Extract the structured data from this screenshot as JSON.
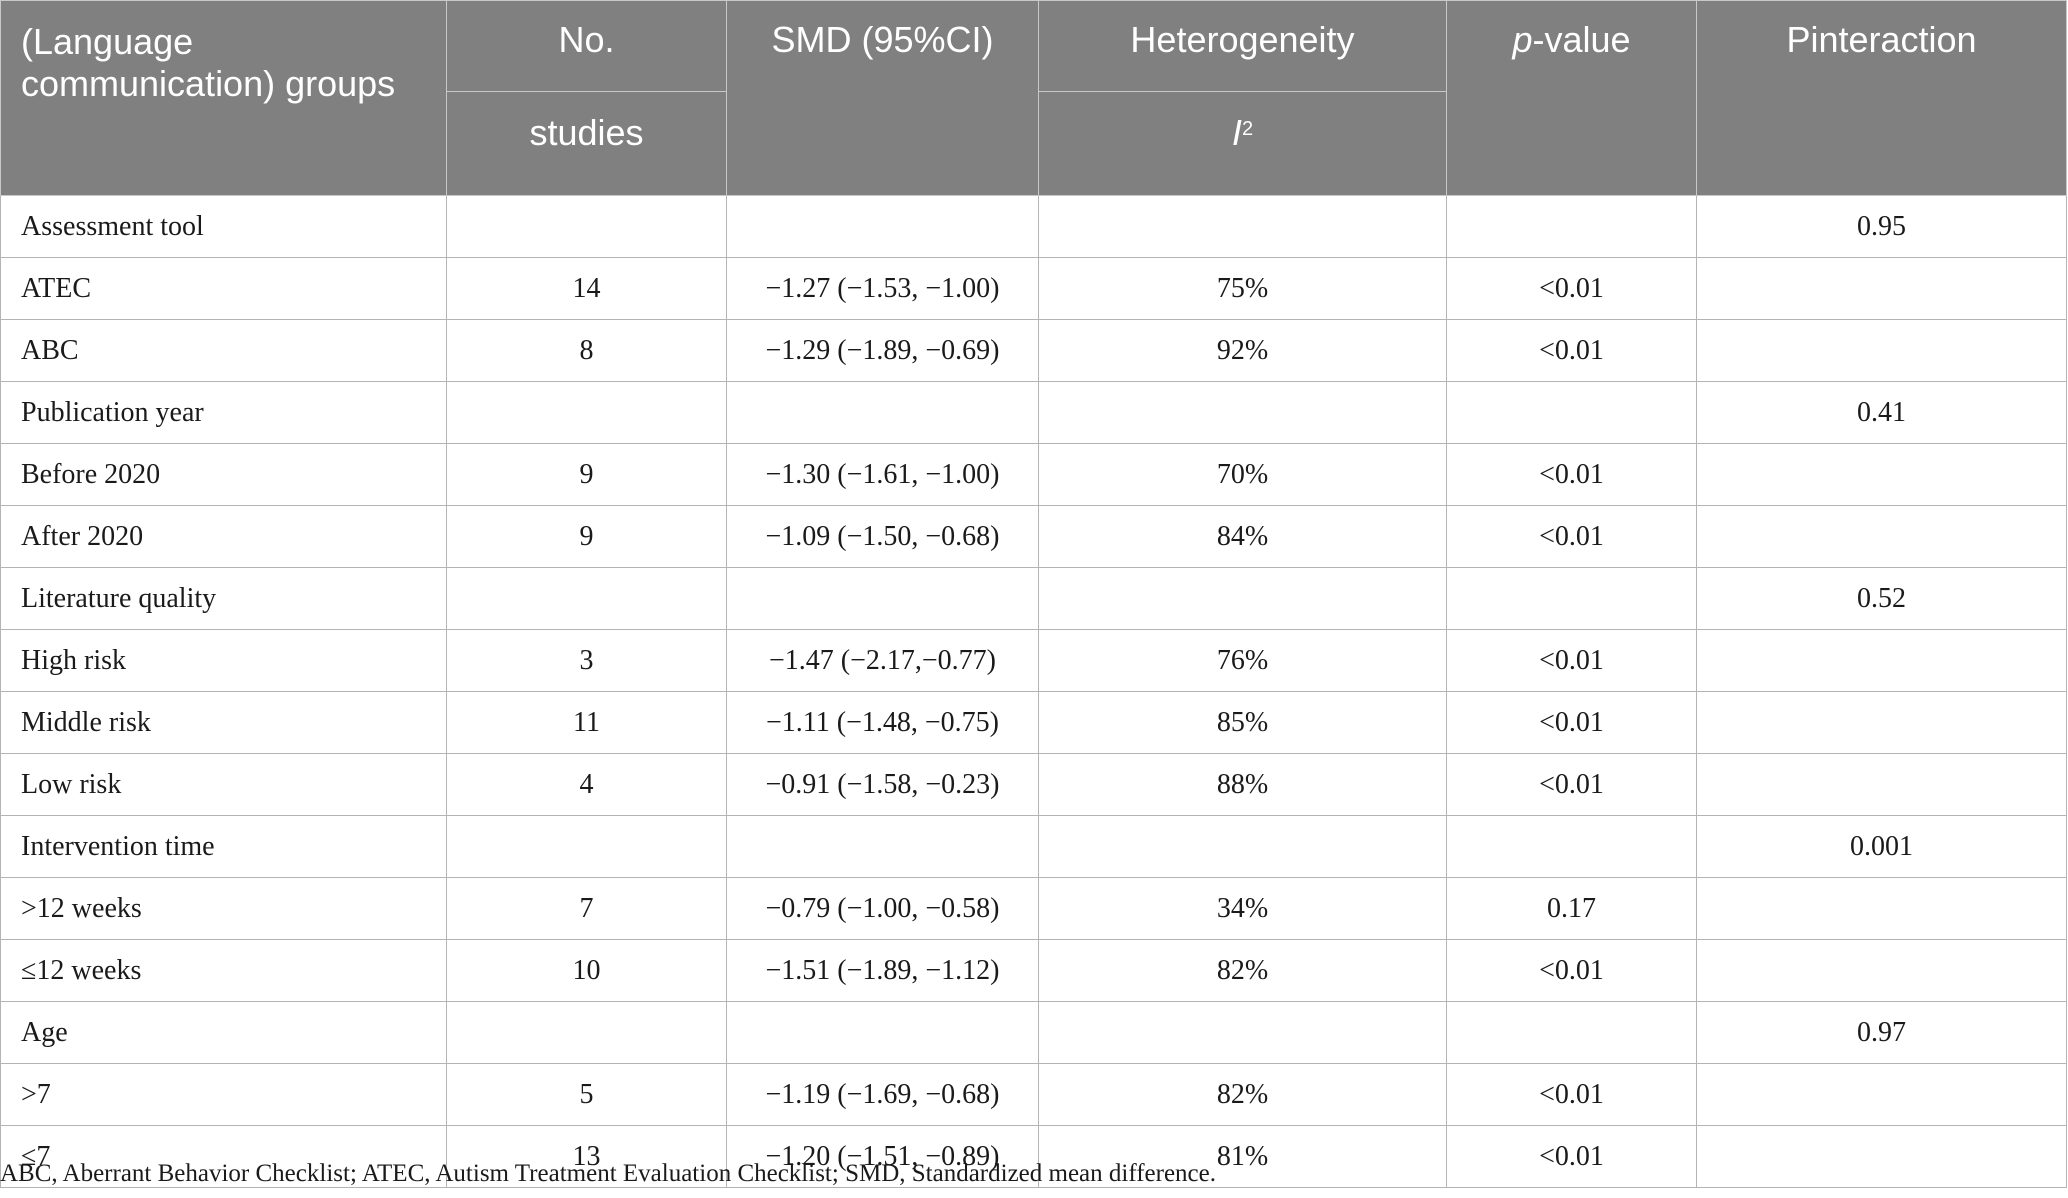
{
  "header": {
    "group_label": "(Language communication) groups",
    "no_label_top": "No.",
    "no_label_bottom": "studies",
    "smd_label": "SMD (95%CI)",
    "heterogeneity_label": "Heterogeneity",
    "i2_label_letter": "I",
    "i2_label_sup": "2",
    "pvalue_label_italic": "p",
    "pvalue_label_rest": "-value",
    "pinteraction_label": "Pinteraction"
  },
  "rows": [
    {
      "label": "Assessment tool",
      "studies": "",
      "smd": "",
      "i2": "",
      "p": "",
      "pint": "0.95"
    },
    {
      "label": "ATEC",
      "studies": "14",
      "smd": "−1.27 (−1.53, −1.00)",
      "i2": "75%",
      "p": "<0.01",
      "pint": ""
    },
    {
      "label": "ABC",
      "studies": "8",
      "smd": "−1.29 (−1.89, −0.69)",
      "i2": "92%",
      "p": "<0.01",
      "pint": ""
    },
    {
      "label": "Publication year",
      "studies": "",
      "smd": "",
      "i2": "",
      "p": "",
      "pint": "0.41"
    },
    {
      "label": "Before 2020",
      "studies": "9",
      "smd": "−1.30 (−1.61, −1.00)",
      "i2": "70%",
      "p": "<0.01",
      "pint": ""
    },
    {
      "label": "After 2020",
      "studies": "9",
      "smd": "−1.09 (−1.50, −0.68)",
      "i2": "84%",
      "p": "<0.01",
      "pint": ""
    },
    {
      "label": "Literature quality",
      "studies": "",
      "smd": "",
      "i2": "",
      "p": "",
      "pint": "0.52"
    },
    {
      "label": "High risk",
      "studies": "3",
      "smd": "−1.47 (−2.17,−0.77)",
      "i2": "76%",
      "p": "<0.01",
      "pint": ""
    },
    {
      "label": "Middle risk",
      "studies": "11",
      "smd": "−1.11 (−1.48, −0.75)",
      "i2": "85%",
      "p": "<0.01",
      "pint": ""
    },
    {
      "label": "Low risk",
      "studies": "4",
      "smd": "−0.91 (−1.58, −0.23)",
      "i2": "88%",
      "p": "<0.01",
      "pint": ""
    },
    {
      "label": "Intervention time",
      "studies": "",
      "smd": "",
      "i2": "",
      "p": "",
      "pint": "0.001"
    },
    {
      "label": ">12 weeks",
      "studies": "7",
      "smd": "−0.79 (−1.00, −0.58)",
      "i2": "34%",
      "p": "0.17",
      "pint": ""
    },
    {
      "label": "≤12 weeks",
      "studies": "10",
      "smd": "−1.51 (−1.89, −1.12)",
      "i2": "82%",
      "p": "<0.01",
      "pint": ""
    },
    {
      "label": "Age",
      "studies": "",
      "smd": "",
      "i2": "",
      "p": "",
      "pint": "0.97"
    },
    {
      "label": ">7",
      "studies": "5",
      "smd": "−1.19 (−1.69, −0.68)",
      "i2": "82%",
      "p": "<0.01",
      "pint": ""
    },
    {
      "label": "≤7",
      "studies": "13",
      "smd": "−1.20 (−1.51, −0.89)",
      "i2": "81%",
      "p": "<0.01",
      "pint": ""
    }
  ],
  "footnote": "ABC, Aberrant Behavior Checklist; ATEC, Autism Treatment Evaluation Checklist; SMD, Standardized mean difference."
}
